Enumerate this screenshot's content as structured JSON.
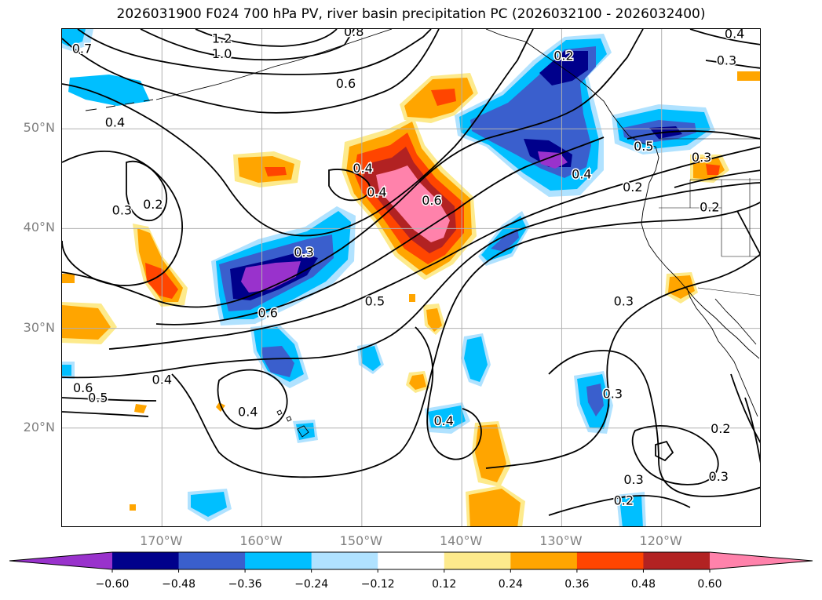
{
  "title": "2026031900 F024 700 hPa PV, river basin precipitation PC (2026032100 - 2026032400)",
  "map": {
    "lon_range": [
      -180,
      -110
    ],
    "lat_range": [
      10,
      60
    ],
    "lat_ticks": [
      {
        "lat": 50,
        "label": "50°N"
      },
      {
        "lat": 40,
        "label": "40°N"
      },
      {
        "lat": 30,
        "label": "30°N"
      },
      {
        "lat": 20,
        "label": "20°N"
      }
    ],
    "lon_ticks": [
      {
        "lon": -170,
        "label": "170°W"
      },
      {
        "lon": -160,
        "label": "160°W"
      },
      {
        "lon": -150,
        "label": "150°W"
      },
      {
        "lon": -140,
        "label": "140°W"
      },
      {
        "lon": -130,
        "label": "130°W"
      },
      {
        "lon": -120,
        "label": "120°W"
      }
    ],
    "grid_color": "#b0b0b0",
    "contour_labels": [
      {
        "text": "0.7",
        "lon": -178,
        "lat": 58
      },
      {
        "text": "1.2",
        "lon": -164,
        "lat": 59
      },
      {
        "text": "1.0",
        "lon": -164,
        "lat": 57.5
      },
      {
        "text": "0.8",
        "lon": -150.8,
        "lat": 59.7
      },
      {
        "text": "0.6",
        "lon": -151.6,
        "lat": 54.5
      },
      {
        "text": "0.4",
        "lon": -174.7,
        "lat": 50.6
      },
      {
        "text": "0.2",
        "lon": -170.9,
        "lat": 42.4
      },
      {
        "text": "0.3",
        "lon": -174,
        "lat": 41.8
      },
      {
        "text": "0.4",
        "lon": -149.9,
        "lat": 46
      },
      {
        "text": "0.4",
        "lon": -148.5,
        "lat": 43.6
      },
      {
        "text": "0.3",
        "lon": -155.8,
        "lat": 37.6
      },
      {
        "text": "0.6",
        "lon": -143,
        "lat": 42.8
      },
      {
        "text": "0.6",
        "lon": -159.4,
        "lat": 31.5
      },
      {
        "text": "0.5",
        "lon": -148.7,
        "lat": 32.7
      },
      {
        "text": "0.6",
        "lon": -177.9,
        "lat": 24
      },
      {
        "text": "0.5",
        "lon": -176.4,
        "lat": 23
      },
      {
        "text": "0.4",
        "lon": -170,
        "lat": 24.8
      },
      {
        "text": "0.4",
        "lon": -161.4,
        "lat": 21.6
      },
      {
        "text": "0.4",
        "lon": -141.8,
        "lat": 20.7
      },
      {
        "text": "0.2",
        "lon": -129.8,
        "lat": 57.3
      },
      {
        "text": "0.3",
        "lon": -113.5,
        "lat": 56.8
      },
      {
        "text": "0.4",
        "lon": -112.7,
        "lat": 59.5
      },
      {
        "text": "0.5",
        "lon": -121.8,
        "lat": 48.2
      },
      {
        "text": "0.3",
        "lon": -116,
        "lat": 47.1
      },
      {
        "text": "0.4",
        "lon": -128,
        "lat": 45.4
      },
      {
        "text": "0.2",
        "lon": -122.9,
        "lat": 44.1
      },
      {
        "text": "0.2",
        "lon": -115.2,
        "lat": 42.1
      },
      {
        "text": "0.3",
        "lon": -123.8,
        "lat": 32.7
      },
      {
        "text": "0.3",
        "lon": -124.9,
        "lat": 23.4
      },
      {
        "text": "0.3",
        "lon": -122.8,
        "lat": 14.8
      },
      {
        "text": "0.2",
        "lon": -123.8,
        "lat": 12.7
      },
      {
        "text": "0.2",
        "lon": -114.1,
        "lat": 19.9
      },
      {
        "text": "0.3",
        "lon": -114.3,
        "lat": 15.1
      }
    ]
  },
  "colorbar": {
    "ticks": [
      "−0.60",
      "−0.48",
      "−0.36",
      "−0.24",
      "−0.12",
      "0.12",
      "0.24",
      "0.36",
      "0.48",
      "0.60"
    ],
    "colors": [
      "#9932cc",
      "#00008b",
      "#3a5fcd",
      "#00bfff",
      "#b0e2ff",
      "#ffffff",
      "#fdea8c",
      "#ffa500",
      "#ff4500",
      "#b22222",
      "#ff82ab"
    ]
  }
}
